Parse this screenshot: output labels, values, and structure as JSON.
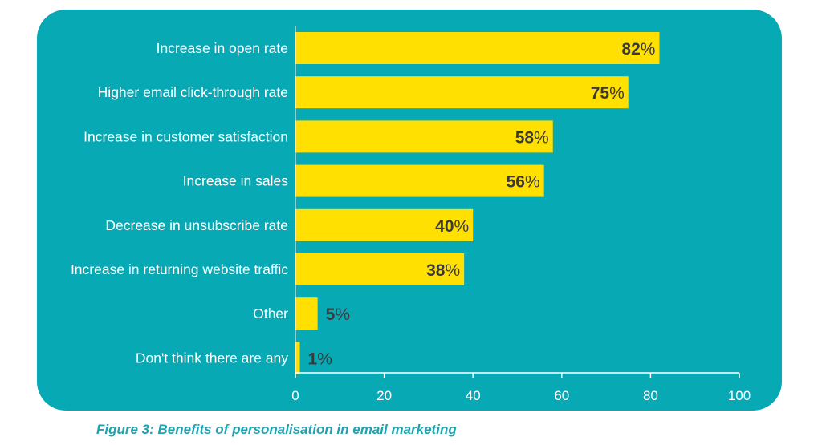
{
  "colors": {
    "panel_background": "#07a9b5",
    "bar_fill": "#ffe000",
    "axis_color": "#ffffff",
    "value_label_color": "#3a3a3a",
    "caption_color": "#1fa3b0"
  },
  "caption": "Figure 3: Benefits of personalisation in email marketing",
  "chart_data": {
    "type": "bar",
    "orientation": "horizontal",
    "categories": [
      "Increase in open rate",
      "Higher email click-through rate",
      "Increase in customer satisfaction",
      "Increase in sales",
      "Decrease in unsubscribe rate",
      "Increase in returning website traffic",
      "Other",
      "Don't think there are any"
    ],
    "values": [
      82,
      75,
      58,
      56,
      40,
      38,
      5,
      1
    ],
    "value_labels": [
      "82%",
      "75%",
      "58%",
      "56%",
      "40%",
      "38%",
      "5%",
      "1%"
    ],
    "xlim": [
      0,
      100
    ],
    "x_ticks": [
      0,
      20,
      40,
      60,
      80,
      100
    ],
    "x_tick_labels": [
      "0",
      "20",
      "40",
      "60",
      "80",
      "100"
    ],
    "grid": false,
    "legend": "none",
    "title": "",
    "xlabel": "",
    "ylabel": ""
  }
}
